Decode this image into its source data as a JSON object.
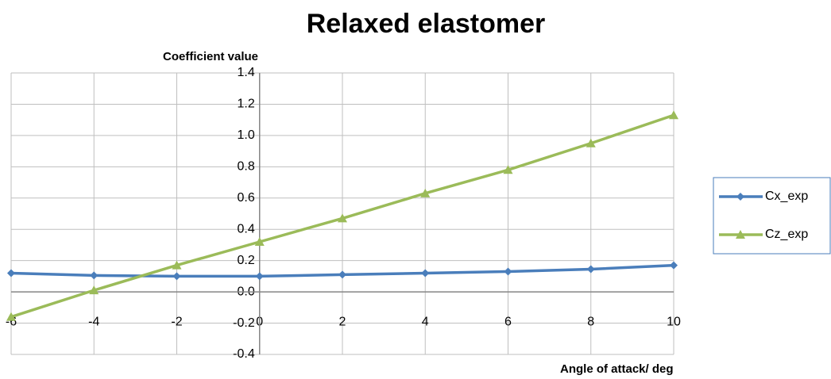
{
  "chart_data": {
    "type": "line",
    "title": "Relaxed elastomer",
    "y_label": "Coefficient value",
    "x_label": "Angle of attack/ deg",
    "x": [
      -6,
      -4,
      -2,
      0,
      2,
      4,
      6,
      8,
      10
    ],
    "series": [
      {
        "name": "Cx_exp",
        "color": "#4a7ebb",
        "marker": "diamond",
        "values": [
          0.12,
          0.105,
          0.1,
          0.1,
          0.11,
          0.12,
          0.13,
          0.145,
          0.17
        ]
      },
      {
        "name": "Cz_exp",
        "color": "#9bbb59",
        "marker": "triangle",
        "values": [
          -0.16,
          0.01,
          0.17,
          0.32,
          0.47,
          0.63,
          0.78,
          0.95,
          1.13
        ]
      }
    ],
    "xlim": [
      -6,
      10
    ],
    "xticks": [
      -6,
      -4,
      -2,
      0,
      2,
      4,
      6,
      8,
      10
    ],
    "ylim": [
      -0.4,
      1.4
    ],
    "yticks": [
      1.4,
      1.2,
      {
        "value": 1,
        "label": "1.0"
      },
      0.8,
      0.6,
      0.4,
      0.2,
      {
        "value": 0,
        "label": "0.0"
      },
      -0.2,
      -0.4
    ],
    "grid": true,
    "legend": "right"
  }
}
